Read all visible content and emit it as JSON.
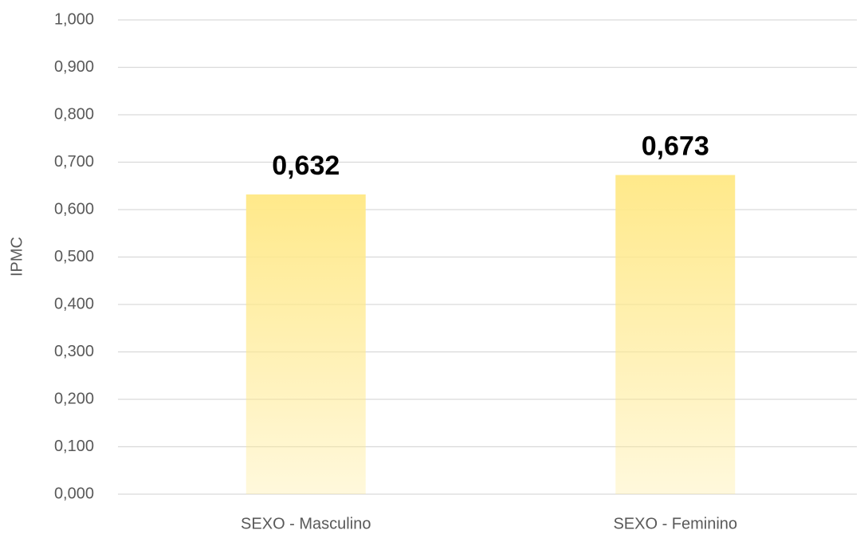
{
  "chart_data": {
    "type": "bar",
    "ylabel": "IPMC",
    "categories": [
      "SEXO - Masculino",
      "SEXO - Feminino"
    ],
    "values": [
      0.632,
      0.673
    ],
    "value_labels": [
      "0,632",
      "0,673"
    ],
    "color": "#ffe98a",
    "ylim": [
      0,
      1
    ],
    "yticks": [
      {
        "value": 0,
        "label": "0,000"
      },
      {
        "value": 0.1,
        "label": "0,100"
      },
      {
        "value": 0.2,
        "label": "0,200"
      },
      {
        "value": 0.3,
        "label": "0,300"
      },
      {
        "value": 0.4,
        "label": "0,400"
      },
      {
        "value": 0.5,
        "label": "0,500"
      },
      {
        "value": 0.6,
        "label": "0,600"
      },
      {
        "value": 0.7,
        "label": "0,700"
      },
      {
        "value": 0.8,
        "label": "0,800"
      },
      {
        "value": 0.9,
        "label": "0,900"
      },
      {
        "value": 1,
        "label": "1,000"
      }
    ],
    "grid": true
  }
}
